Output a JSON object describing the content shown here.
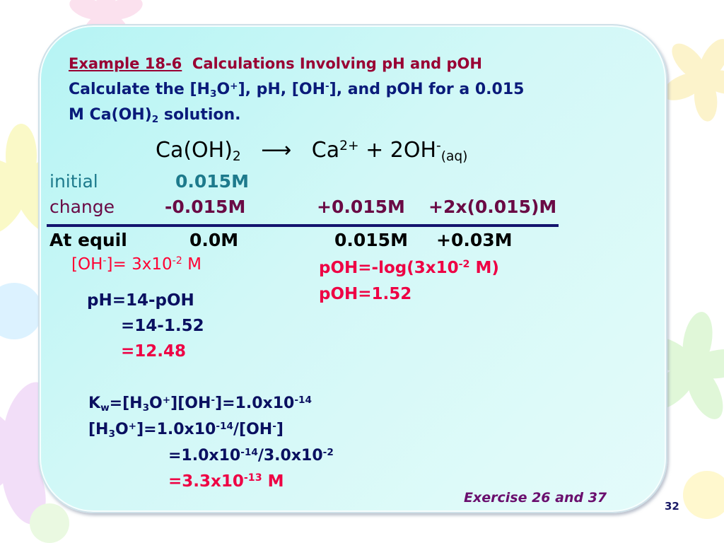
{
  "header": {
    "example_label": "Example 18-6",
    "example_title": "Calculations Involving pH and pOH",
    "problem_l1": [
      "Calculate the [H",
      "3",
      "O",
      "+",
      "], pH, [OH",
      "-",
      "], and pOH for a 0.015"
    ],
    "problem_l2": [
      "M Ca(OH)",
      "2",
      " solution."
    ]
  },
  "reaction": {
    "reactant": "Ca(OH)",
    "reactant_sub": "2",
    "arrow": "⟶",
    "product1": "Ca",
    "product1_sup": "2+",
    "plus_2oh": " + 2OH",
    "oh_sup": "-",
    "aq": "(aq)"
  },
  "ice": {
    "initial": "initial",
    "initial_val": "0.015M",
    "change": "change",
    "change_val1": "-0.015M",
    "change_val2": "+0.015M",
    "change_val3": "+2x(0.015)M",
    "equil": "At equil",
    "equil_val1": "0.0M",
    "equil_val2": "0.015M",
    "equil_val3": "+0.03M"
  },
  "calc": {
    "oh_conc": [
      "[OH",
      "-",
      "]= 3x10",
      "-2",
      " M"
    ],
    "poh_expr": [
      "pOH=-log(3x10",
      "-2",
      " M)"
    ],
    "poh_val": "pOH=1.52",
    "ph1": "pH=14-pOH",
    "ph2": "=14-1.52",
    "ph3": "=12.48",
    "kw": [
      "K",
      "w",
      "=[H",
      "3",
      "O",
      "+",
      "][OH",
      "-",
      "]=1.0x10",
      "-14"
    ],
    "h3o": [
      "[H",
      "3",
      "O",
      "+",
      "]=1.0x10",
      "-14",
      "/[OH",
      "-",
      "]"
    ],
    "step2": [
      "=1.0x10",
      "-14",
      "/3.0x10",
      "-2"
    ],
    "step3": [
      "=3.3x10",
      "-13",
      " M"
    ]
  },
  "footer": {
    "exercise": "Exercise 26 and 37",
    "page_number": "32"
  },
  "colors": {
    "panel": "#c8f6f6",
    "title": "#990033",
    "navy": "#0a1b7a",
    "accent": "#ff0033"
  }
}
